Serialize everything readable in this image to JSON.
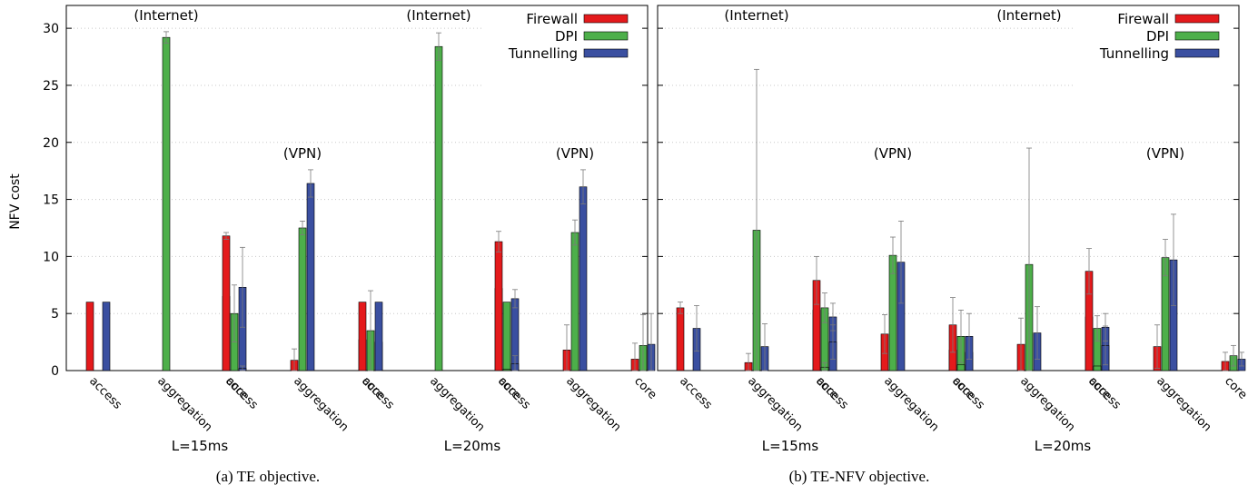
{
  "figure": {
    "ylabel": "NFV cost",
    "captions": [
      "(a) TE objective.",
      "(b) TE-NFV objective."
    ]
  },
  "chart_data": [
    {
      "type": "bar",
      "panel": "a",
      "caption": "(a) TE objective.",
      "ylabel": "NFV cost",
      "ylim": [
        0,
        32
      ],
      "yticks": [
        0,
        5,
        10,
        15,
        20,
        25,
        30
      ],
      "grid": true,
      "legend_position": "top-right",
      "series": [
        {
          "name": "Firewall",
          "color": "#e41a1c"
        },
        {
          "name": "DPI",
          "color": "#4daf4a"
        },
        {
          "name": "Tunnelling",
          "color": "#3a4fa0"
        }
      ],
      "scenario_labels": [
        "(Internet)",
        "(VPN)",
        "(Internet)",
        "(VPN)"
      ],
      "group_labels": [
        "L=15ms",
        "L=20ms"
      ],
      "categories": [
        "access",
        "aggregation",
        "core"
      ],
      "clusters": [
        {
          "scenario": "(Internet)",
          "latency": "L=15ms",
          "bars": [
            {
              "category": "access",
              "values": [
                6.0,
                null,
                6.0
              ],
              "err": [
                null,
                null,
                null
              ]
            },
            {
              "category": "aggregation",
              "values": [
                null,
                29.2,
                null
              ],
              "err": [
                null,
                [
                  28.7,
                  29.7
                ],
                null
              ]
            },
            {
              "category": "core",
              "values": [
                6.5,
                5.0,
                7.3
              ],
              "err": [
                [
                  6.0,
                  7.0
                ],
                [
                  2.5,
                  7.5
                ],
                [
                  3.8,
                  10.8
                ]
              ]
            }
          ]
        },
        {
          "scenario": "(VPN)",
          "latency": "L=15ms",
          "bars": [
            {
              "category": "access",
              "values": [
                11.8,
                null,
                0.2
              ],
              "err": [
                [
                  11.5,
                  12.1
                ],
                null,
                [
                  0.0,
                  0.4
                ]
              ]
            },
            {
              "category": "aggregation",
              "values": [
                0.9,
                12.5,
                16.4
              ],
              "err": [
                [
                  0.0,
                  1.9
                ],
                [
                  11.9,
                  13.1
                ],
                [
                  15.2,
                  17.6
                ]
              ]
            },
            {
              "category": "core",
              "values": [
                2.7,
                3.5,
                2.5
              ],
              "err": [
                [
                  0.0,
                  5.4
                ],
                [
                  0.0,
                  7.0
                ],
                [
                  0.0,
                  5.0
                ]
              ]
            }
          ]
        },
        {
          "scenario": "(Internet)",
          "latency": "L=20ms",
          "bars": [
            {
              "category": "access",
              "values": [
                6.0,
                null,
                6.0
              ],
              "err": [
                null,
                null,
                null
              ]
            },
            {
              "category": "aggregation",
              "values": [
                null,
                28.4,
                null
              ],
              "err": [
                null,
                [
                  27.2,
                  29.6
                ],
                null
              ]
            },
            {
              "category": "core",
              "values": [
                7.2,
                6.0,
                6.3
              ],
              "err": [
                [
                  6.4,
                  8.0
                ],
                null,
                [
                  5.5,
                  7.1
                ]
              ]
            }
          ]
        },
        {
          "scenario": "(VPN)",
          "latency": "L=20ms",
          "bars": [
            {
              "category": "access",
              "values": [
                11.3,
                0.1,
                0.6
              ],
              "err": [
                [
                  10.4,
                  12.2
                ],
                null,
                [
                  0.0,
                  1.3
                ]
              ]
            },
            {
              "category": "aggregation",
              "values": [
                1.8,
                12.1,
                16.1
              ],
              "err": [
                [
                  0.0,
                  4.0
                ],
                [
                  11.0,
                  13.2
                ],
                [
                  14.6,
                  17.6
                ]
              ]
            },
            {
              "category": "core",
              "values": [
                1.0,
                2.2,
                2.3
              ],
              "err": [
                [
                  0.0,
                  2.4
                ],
                [
                  0.0,
                  4.9
                ],
                [
                  0.0,
                  5.0
                ]
              ]
            }
          ]
        }
      ]
    },
    {
      "type": "bar",
      "panel": "b",
      "caption": "(b) TE-NFV objective.",
      "ylim": [
        0,
        32
      ],
      "yticks": [
        0,
        5,
        10,
        15,
        20,
        25,
        30
      ],
      "grid": true,
      "legend_position": "top-right",
      "series": [
        {
          "name": "Firewall",
          "color": "#e41a1c"
        },
        {
          "name": "DPI",
          "color": "#4daf4a"
        },
        {
          "name": "Tunnelling",
          "color": "#3a4fa0"
        }
      ],
      "scenario_labels": [
        "(Internet)",
        "(VPN)",
        "(Internet)",
        "(VPN)"
      ],
      "group_labels": [
        "L=15ms",
        "L=20ms"
      ],
      "categories": [
        "access",
        "aggregation",
        "core"
      ],
      "clusters": [
        {
          "scenario": "(Internet)",
          "latency": "L=15ms",
          "bars": [
            {
              "category": "access",
              "values": [
                5.5,
                null,
                3.7
              ],
              "err": [
                [
                  5.0,
                  6.0
                ],
                null,
                [
                  1.7,
                  5.7
                ]
              ]
            },
            {
              "category": "aggregation",
              "values": [
                0.7,
                12.3,
                2.1
              ],
              "err": [
                [
                  0.0,
                  1.5
                ],
                [
                  0.0,
                  26.4
                ],
                [
                  0.0,
                  4.1
                ]
              ]
            },
            {
              "category": "core",
              "values": [
                5.3,
                5.5,
                4.7
              ],
              "err": [
                [
                  4.3,
                  6.3
                ],
                [
                  4.2,
                  6.8
                ],
                [
                  3.5,
                  5.9
                ]
              ]
            }
          ]
        },
        {
          "scenario": "(VPN)",
          "latency": "L=15ms",
          "bars": [
            {
              "category": "access",
              "values": [
                7.9,
                0.3,
                2.5
              ],
              "err": [
                [
                  5.8,
                  10.0
                ],
                [
                  0.0,
                  0.7
                ],
                [
                  1.0,
                  4.0
                ]
              ]
            },
            {
              "category": "aggregation",
              "values": [
                3.2,
                10.1,
                9.5
              ],
              "err": [
                [
                  1.5,
                  4.9
                ],
                [
                  8.5,
                  11.7
                ],
                [
                  5.9,
                  13.1
                ]
              ]
            },
            {
              "category": "core",
              "values": [
                1.8,
                3.0,
                1.6
              ],
              "err": [
                [
                  0.0,
                  3.8
                ],
                [
                  0.7,
                  5.3
                ],
                [
                  0.3,
                  2.9
                ]
              ]
            }
          ]
        },
        {
          "scenario": "(Internet)",
          "latency": "L=20ms",
          "bars": [
            {
              "category": "access",
              "values": [
                4.0,
                0.5,
                3.0
              ],
              "err": [
                [
                  1.6,
                  6.4
                ],
                null,
                [
                  1.0,
                  5.0
                ]
              ]
            },
            {
              "category": "aggregation",
              "values": [
                2.3,
                9.3,
                3.3
              ],
              "err": [
                [
                  0.0,
                  4.6
                ],
                [
                  0.0,
                  19.5
                ],
                [
                  1.0,
                  5.6
                ]
              ]
            },
            {
              "category": "core",
              "values": [
                4.7,
                3.7,
                3.8
              ],
              "err": [
                [
                  3.4,
                  6.0
                ],
                [
                  2.6,
                  4.8
                ],
                [
                  2.6,
                  5.0
                ]
              ]
            }
          ]
        },
        {
          "scenario": "(VPN)",
          "latency": "L=20ms",
          "bars": [
            {
              "category": "access",
              "values": [
                8.7,
                0.4,
                2.2
              ],
              "err": [
                [
                  6.7,
                  10.7
                ],
                null,
                [
                  0.5,
                  3.9
                ]
              ]
            },
            {
              "category": "aggregation",
              "values": [
                2.1,
                9.9,
                9.7
              ],
              "err": [
                [
                  0.2,
                  4.0
                ],
                [
                  8.3,
                  11.5
                ],
                [
                  5.7,
                  13.7
                ]
              ]
            },
            {
              "category": "core",
              "values": [
                0.8,
                1.3,
                1.0
              ],
              "err": [
                [
                  0.0,
                  1.6
                ],
                [
                  0.4,
                  2.2
                ],
                [
                  0.4,
                  1.6
                ]
              ]
            }
          ]
        }
      ]
    }
  ]
}
